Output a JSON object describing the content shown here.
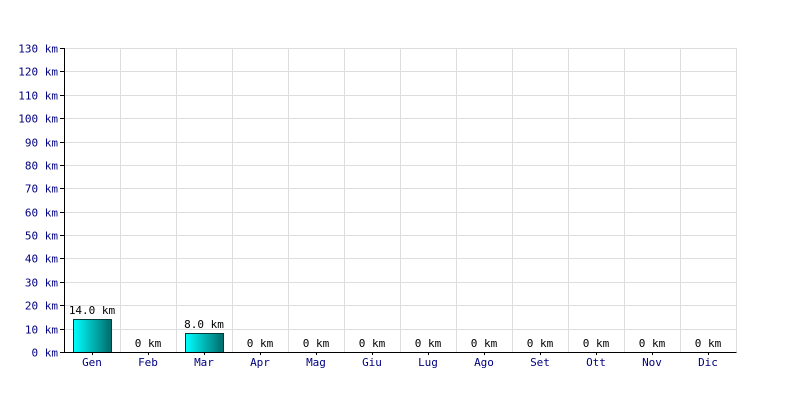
{
  "chart_data": {
    "type": "bar",
    "title": "",
    "xlabel": "",
    "ylabel": "",
    "unit": "km",
    "ylim": [
      0,
      130
    ],
    "y_ticks": [
      0,
      10,
      20,
      30,
      40,
      50,
      60,
      70,
      80,
      90,
      100,
      110,
      120,
      130
    ],
    "y_tick_labels": [
      "0 km",
      "10 km",
      "20 km",
      "30 km",
      "40 km",
      "50 km",
      "60 km",
      "70 km",
      "80 km",
      "90 km",
      "100 km",
      "110 km",
      "120 km",
      "130 km"
    ],
    "grid": true,
    "categories": [
      "Gen",
      "Feb",
      "Mar",
      "Apr",
      "Mag",
      "Giu",
      "Lug",
      "Ago",
      "Set",
      "Ott",
      "Nov",
      "Dic"
    ],
    "values": [
      14.0,
      0,
      8.0,
      0,
      0,
      0,
      0,
      0,
      0,
      0,
      0,
      0
    ],
    "data_labels": [
      "14.0 km",
      "0 km",
      "8.0 km",
      "0 km",
      "0 km",
      "0 km",
      "0 km",
      "0 km",
      "0 km",
      "0 km",
      "0 km",
      "0 km"
    ],
    "colors": {
      "bar_light": "#00ffff",
      "bar_dark": "#006b6b",
      "bar_stroke": "#003c3c",
      "grid": "#dddddd",
      "axis": "#000000",
      "tick_text": "#000080"
    }
  }
}
